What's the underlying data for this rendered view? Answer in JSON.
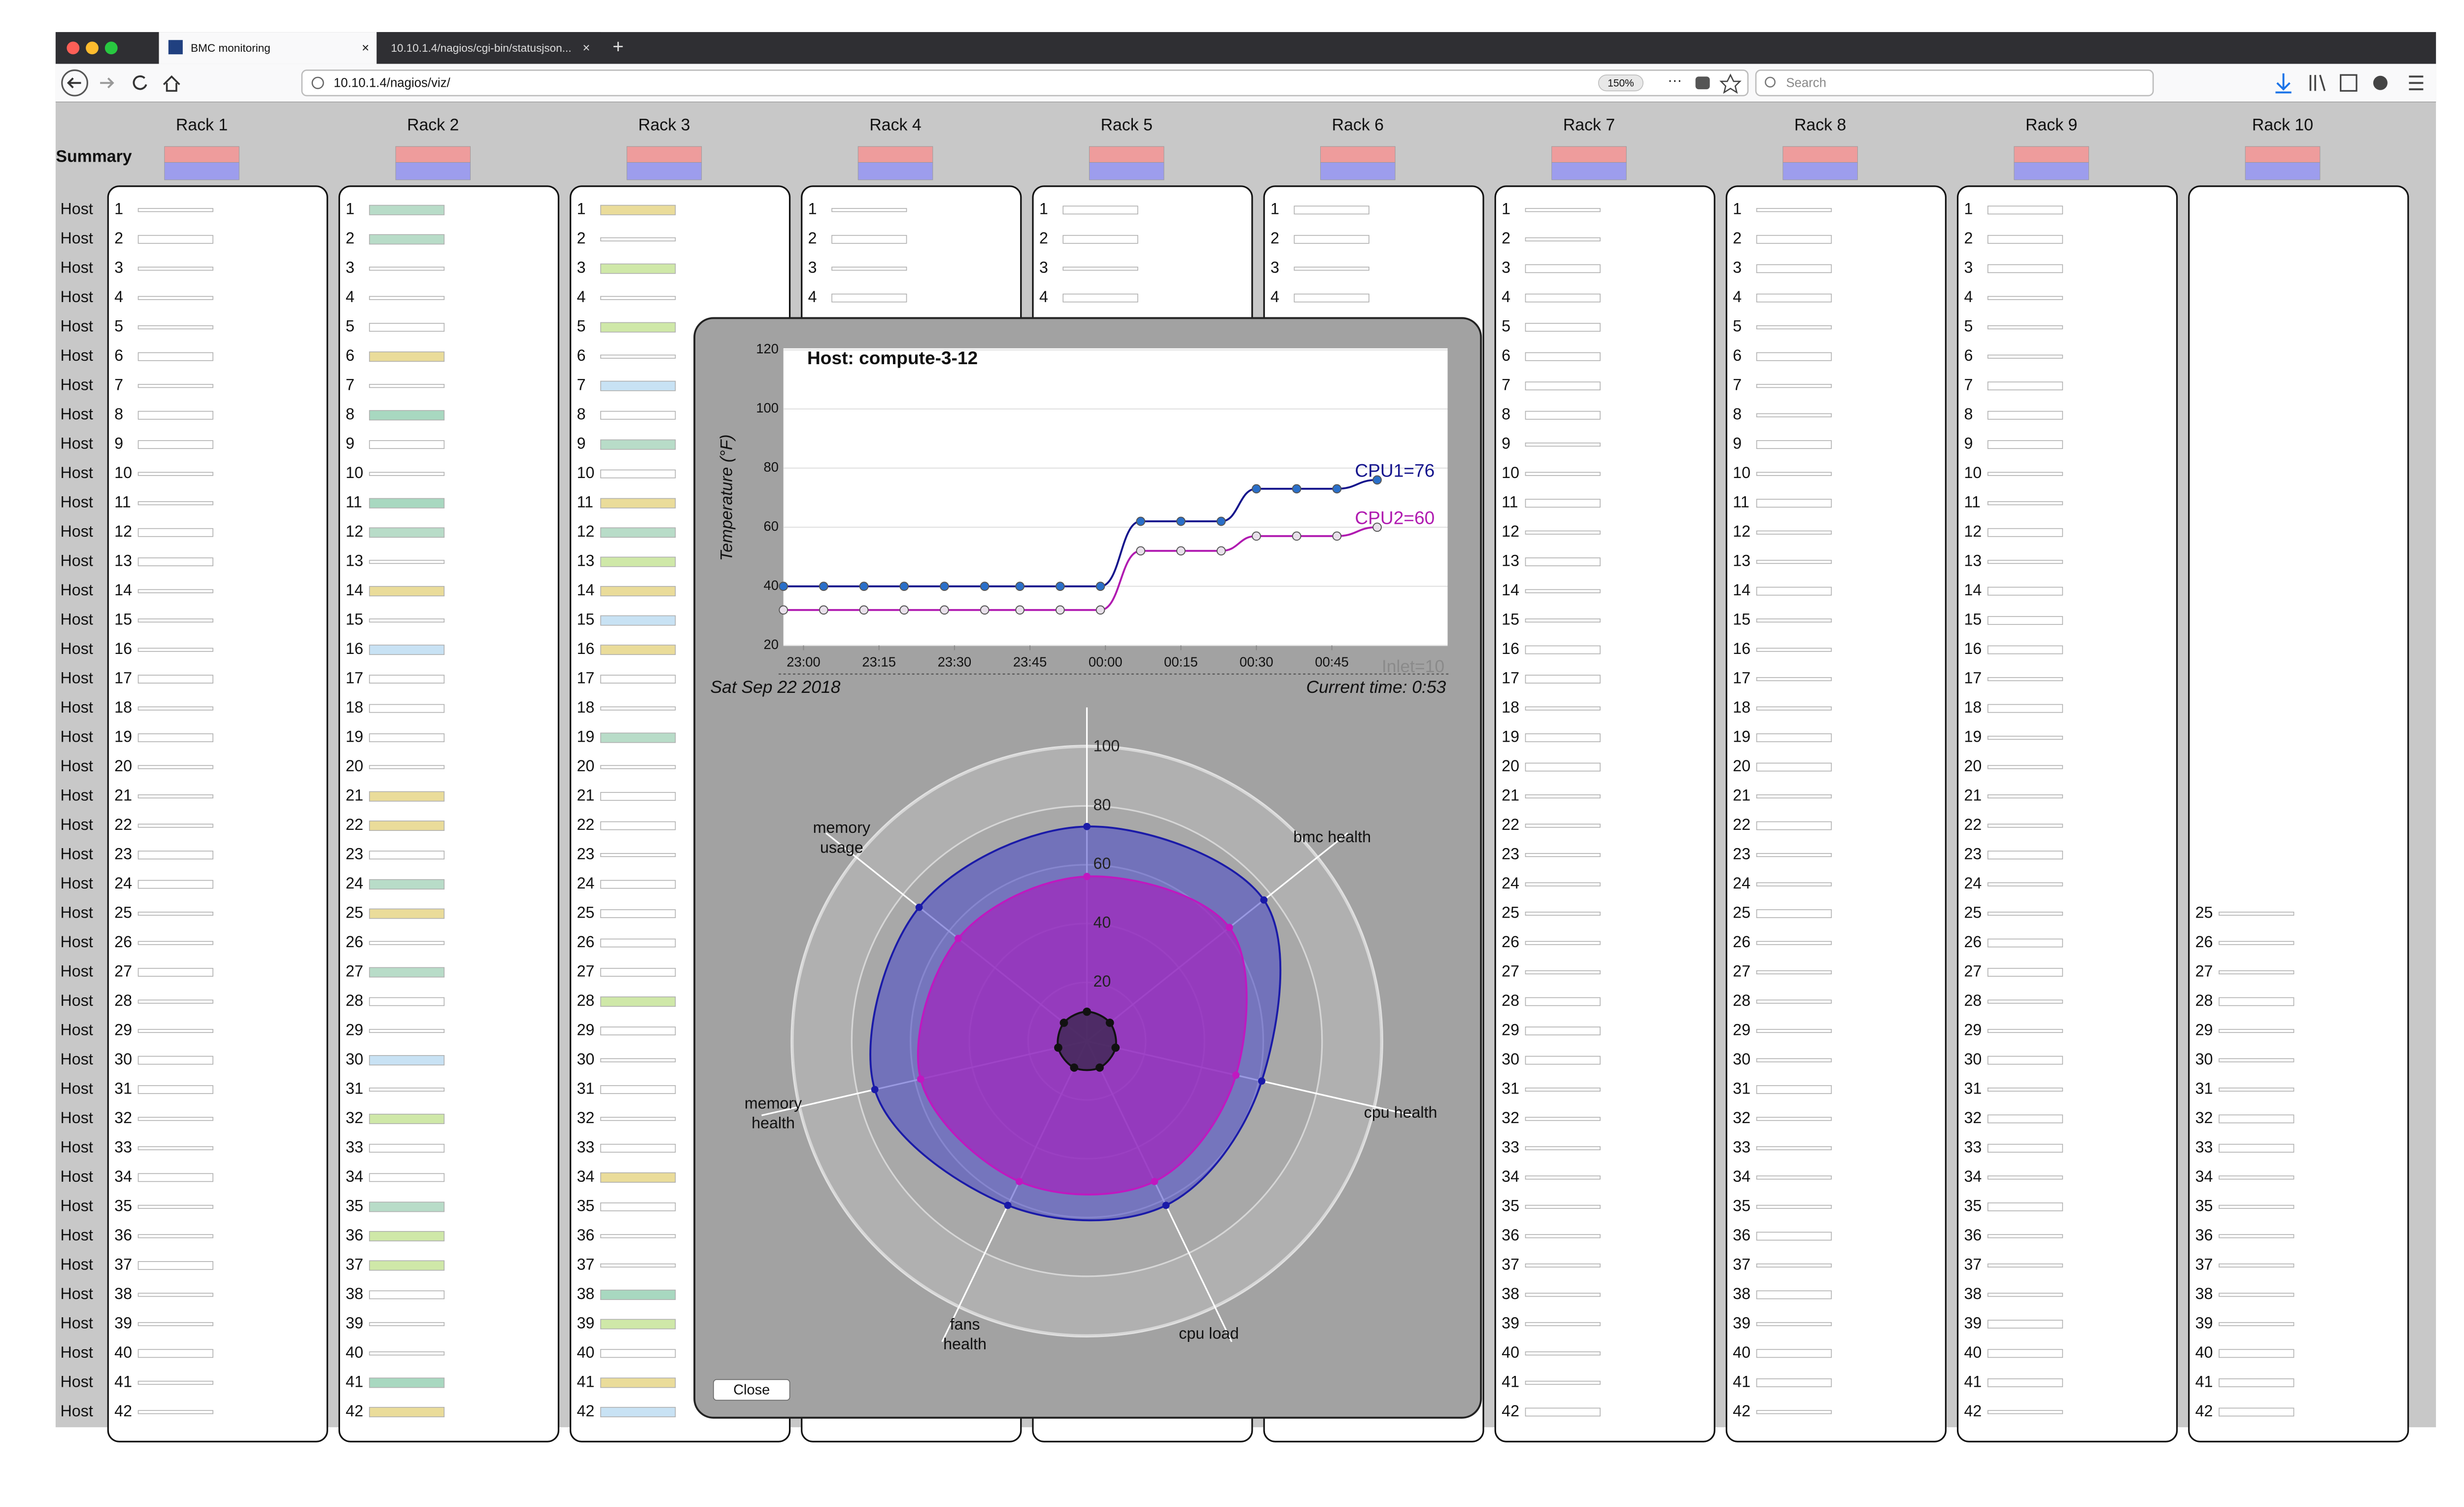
{
  "browser": {
    "tabs": [
      "BMC monitoring",
      "10.10.1.4/nagios/cgi-bin/statusjson..."
    ],
    "url": "10.10.1.4/nagios/viz/",
    "zoom": "150%",
    "search": "Search"
  },
  "summary_label": "Summary",
  "host_label": "Host",
  "host_numbers": [
    1,
    2,
    3,
    4,
    5,
    6,
    7,
    8,
    9,
    10,
    11,
    12,
    13,
    14,
    15,
    16,
    17,
    18,
    19,
    20,
    21,
    22,
    23,
    24,
    25,
    26,
    27,
    28,
    29,
    30,
    31,
    32,
    33,
    34,
    35,
    36,
    37,
    38,
    39,
    40,
    41,
    42
  ],
  "racks": [
    {
      "name": "Rack 1"
    },
    {
      "name": "Rack 2"
    },
    {
      "name": "Rack 3"
    },
    {
      "name": "Rack 4"
    },
    {
      "name": "Rack 5"
    },
    {
      "name": "Rack 6"
    },
    {
      "name": "Rack 7"
    },
    {
      "name": "Rack 8"
    },
    {
      "name": "Rack 9"
    },
    {
      "name": "Rack 10",
      "first_host": 25
    }
  ],
  "close_button": "Close",
  "chart_data": [
    {
      "type": "line",
      "title": "Host: compute-3-12",
      "y_label": "Temperature (°F)",
      "date_label": "Sat Sep 22 2018",
      "current_time": "Current time: 0:53",
      "annotation": "Inlet=10",
      "x": [
        -4,
        4,
        12,
        20,
        28,
        36,
        43,
        51,
        59,
        67,
        75,
        83,
        90,
        98,
        106,
        114
      ],
      "xlim": [
        -4,
        128
      ],
      "xticks": [
        {
          "value": 0,
          "label": "23:00"
        },
        {
          "value": 15,
          "label": "23:15"
        },
        {
          "value": 30,
          "label": "23:30"
        },
        {
          "value": 45,
          "label": "23:45"
        },
        {
          "value": 60,
          "label": "00:00"
        },
        {
          "value": 75,
          "label": "00:15"
        },
        {
          "value": 90,
          "label": "00:30"
        },
        {
          "value": 105,
          "label": "00:45"
        }
      ],
      "ylim": [
        20,
        120
      ],
      "yticks": [
        20,
        40,
        60,
        80,
        100,
        120
      ],
      "grid": true,
      "series": [
        {
          "label": "CPU1=76",
          "color": "#14148c",
          "point_color": "#2a6fc9",
          "values": [
            40,
            40,
            40,
            40,
            40,
            40,
            40,
            40,
            40,
            62,
            62,
            62,
            73,
            73,
            73,
            76
          ]
        },
        {
          "label": "CPU2=60",
          "color": "#b01ab0",
          "point_color": "#e8e0ea",
          "values": [
            32,
            32,
            32,
            32,
            32,
            32,
            32,
            32,
            32,
            52,
            52,
            52,
            57,
            57,
            57,
            60
          ]
        }
      ]
    },
    {
      "type": "radar",
      "categories": [
        null,
        "bmc health",
        "cpu health",
        "cpu load",
        "fans health",
        "memory health",
        "memory usage"
      ],
      "ylim": [
        0,
        100
      ],
      "yticks": [
        20,
        40,
        60,
        80,
        100
      ],
      "series": [
        {
          "color": "#1a1aa8",
          "fill": "rgba(70,70,200,0.55)",
          "values": [
            73,
            77,
            61,
            62,
            62,
            74,
            73
          ]
        },
        {
          "color": "#c018c0",
          "fill": "rgba(160,40,190,0.75)",
          "values": [
            56,
            62,
            52,
            53,
            53,
            58,
            56
          ]
        },
        {
          "color": "#111111",
          "fill": "rgba(60,40,80,0.8)",
          "values": [
            10,
            10,
            10,
            10,
            10,
            10,
            10
          ]
        }
      ]
    }
  ]
}
